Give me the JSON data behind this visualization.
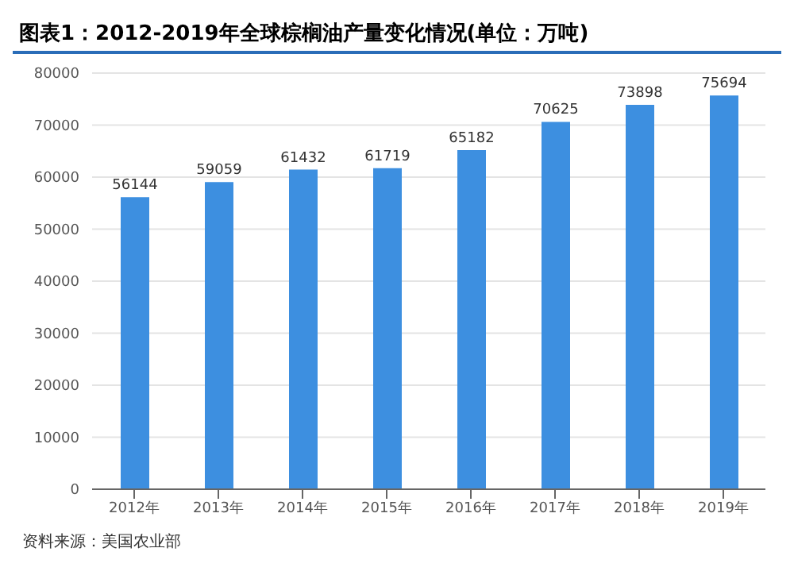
{
  "chart_data": {
    "type": "bar",
    "title": "图表1：2012-2019年全球棕榈油产量变化情况(单位：万吨)",
    "categories": [
      "2012年",
      "2013年",
      "2014年",
      "2015年",
      "2016年",
      "2017年",
      "2018年",
      "2019年"
    ],
    "values": [
      56144,
      59059,
      61432,
      61719,
      65182,
      70625,
      73898,
      75694
    ],
    "color": "#3d8fe0",
    "data_labels": true,
    "grid": "y",
    "ylim": [
      0,
      80000
    ],
    "yticks": [
      0,
      10000,
      20000,
      30000,
      40000,
      50000,
      60000,
      70000,
      80000
    ],
    "annotations": [
      "资料来源：美国农业部"
    ]
  }
}
